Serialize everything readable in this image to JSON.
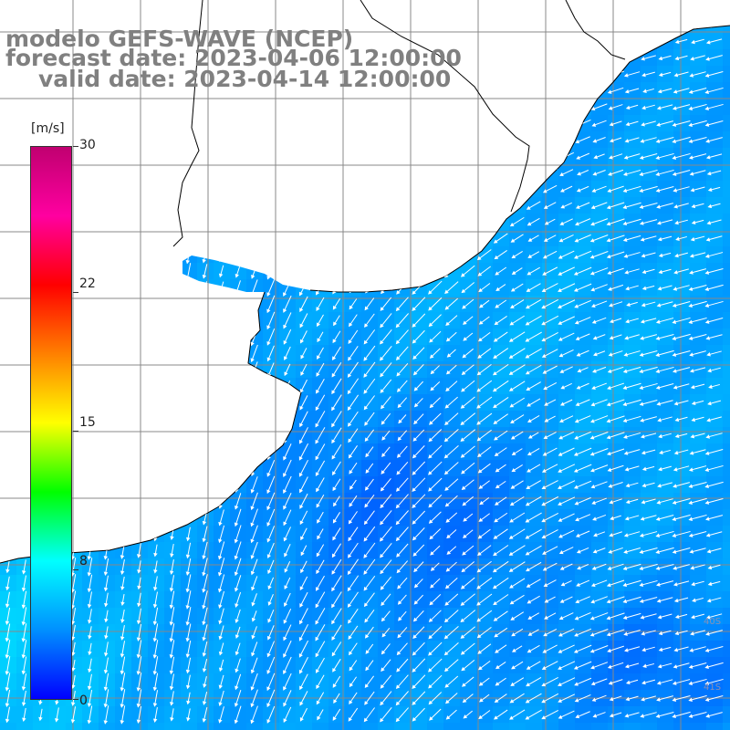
{
  "header": {
    "title": "modelo GEFS-WAVE (NCEP)",
    "forecast": "forecast date: 2023-04-06 12:00:00",
    "valid": "valid date: 2023-04-14 12:00:00"
  },
  "colorbar": {
    "unit": "[m/s]",
    "ticks": [
      {
        "label": "30",
        "value": 30
      },
      {
        "label": "22",
        "value": 22
      },
      {
        "label": "15",
        "value": 15
      },
      {
        "label": "8",
        "value": 8
      },
      {
        "label": "0",
        "value": 0
      }
    ],
    "range": [
      0,
      30
    ],
    "colors": [
      "#0000ff",
      "#0090ff",
      "#00ffff",
      "#00ff00",
      "#ffff00",
      "#ff8000",
      "#ff0000",
      "#ff00a0",
      "#c00070"
    ]
  },
  "map_labels": {
    "lat_40": "40S",
    "lat_41": "41S"
  },
  "colors": {
    "land": "#ffffff",
    "grid": "#888888",
    "coast": "#000000",
    "arrow": "#ffffff",
    "text": "#808080"
  }
}
